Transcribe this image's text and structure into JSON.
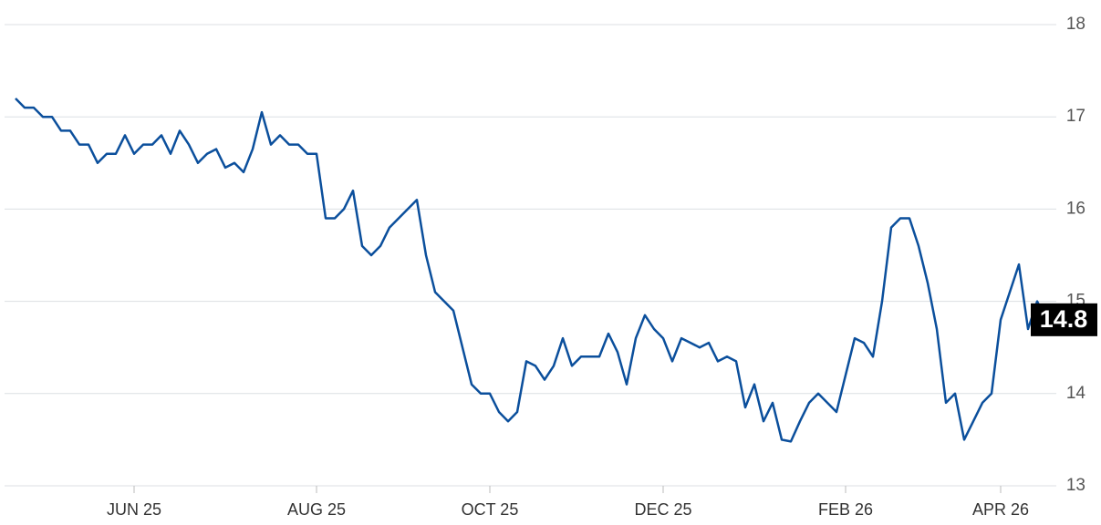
{
  "chart_data": {
    "type": "line",
    "color": "#0b4f9c",
    "grid": true,
    "categories": [
      null,
      null,
      null,
      null,
      null,
      null,
      null,
      null,
      null,
      null,
      null,
      null,
      null,
      "JUN 25",
      null,
      null,
      null,
      null,
      null,
      null,
      null,
      null,
      null,
      null,
      null,
      null,
      null,
      null,
      null,
      null,
      null,
      null,
      null,
      "AUG 25",
      null,
      null,
      null,
      null,
      null,
      null,
      null,
      null,
      null,
      null,
      null,
      null,
      null,
      null,
      null,
      null,
      null,
      null,
      "OCT 25",
      null,
      null,
      null,
      null,
      null,
      null,
      null,
      null,
      null,
      null,
      null,
      null,
      null,
      null,
      null,
      null,
      null,
      null,
      "DEC 25",
      null,
      null,
      null,
      null,
      null,
      null,
      null,
      null,
      null,
      null,
      null,
      null,
      null,
      null,
      null,
      null,
      null,
      null,
      null,
      "FEB 26",
      null,
      null,
      null,
      null,
      null,
      null,
      null,
      null,
      null,
      null,
      null,
      null,
      null,
      null,
      null,
      null,
      "APR 26",
      null,
      null,
      null,
      null,
      null
    ],
    "values": [
      17.2,
      17.1,
      17.1,
      17.0,
      17.0,
      16.85,
      16.85,
      16.7,
      16.7,
      16.5,
      16.6,
      16.6,
      16.8,
      16.6,
      16.7,
      16.7,
      16.8,
      16.6,
      16.85,
      16.7,
      16.5,
      16.6,
      16.65,
      16.45,
      16.5,
      16.4,
      16.65,
      17.05,
      16.7,
      16.8,
      16.7,
      16.7,
      16.6,
      16.6,
      15.9,
      15.9,
      16.0,
      16.2,
      15.6,
      15.5,
      15.6,
      15.8,
      15.9,
      16.0,
      16.1,
      15.5,
      15.1,
      15.0,
      14.9,
      14.5,
      14.1,
      14.0,
      14.0,
      13.8,
      13.7,
      13.8,
      14.35,
      14.3,
      14.15,
      14.3,
      14.6,
      14.3,
      14.4,
      14.4,
      14.4,
      14.65,
      14.45,
      14.1,
      14.6,
      14.85,
      14.7,
      14.6,
      14.35,
      14.6,
      14.55,
      14.5,
      14.55,
      14.35,
      14.4,
      14.35,
      13.85,
      14.1,
      13.7,
      13.9,
      13.5,
      13.48,
      13.7,
      13.9,
      14.0,
      13.9,
      13.8,
      14.2,
      14.6,
      14.55,
      14.4,
      15.0,
      15.8,
      15.9,
      15.9,
      15.6,
      15.2,
      14.7,
      13.9,
      14.0,
      13.5,
      13.7,
      13.9,
      14.0,
      14.8,
      15.1,
      15.4,
      14.7,
      15.0,
      14.8
    ],
    "ylim": [
      13,
      18
    ],
    "yticks": [
      13,
      14,
      15,
      16,
      17,
      18
    ]
  }
}
